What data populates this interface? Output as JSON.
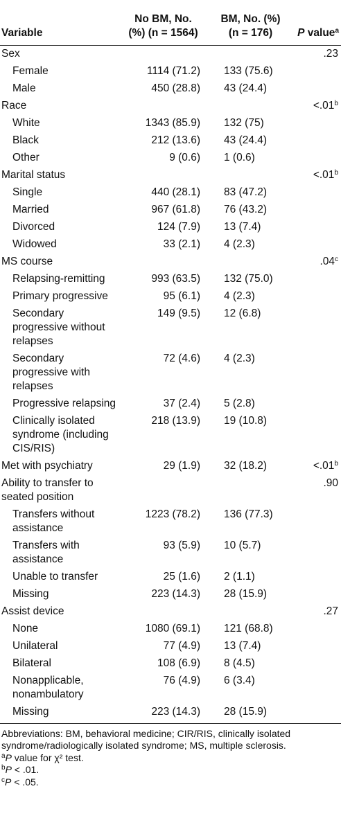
{
  "table": {
    "headers": {
      "variable": "Variable",
      "no_bm_line1": "No BM, No.",
      "no_bm_line2": "(%) (n = 1564)",
      "bm_line1": "BM, No. (%)",
      "bm_line2": "(n = 176)",
      "p_value": "value",
      "p_letter": "P",
      "p_sup": "a"
    },
    "rows": [
      {
        "label": "Sex",
        "indent": false,
        "no_bm": "",
        "bm": "",
        "p": ".23",
        "p_sup": ""
      },
      {
        "label": "Female",
        "indent": true,
        "no_bm": "1114 (71.2)",
        "bm": "133 (75.6)",
        "p": "",
        "p_sup": ""
      },
      {
        "label": "Male",
        "indent": true,
        "no_bm": "450 (28.8)",
        "bm": "43 (24.4)",
        "p": "",
        "p_sup": ""
      },
      {
        "label": "Race",
        "indent": false,
        "no_bm": "",
        "bm": "",
        "p": "<.01",
        "p_sup": "b"
      },
      {
        "label": "White",
        "indent": true,
        "no_bm": "1343 (85.9)",
        "bm": "132 (75)",
        "p": "",
        "p_sup": ""
      },
      {
        "label": "Black",
        "indent": true,
        "no_bm": "212 (13.6)",
        "bm": "43 (24.4)",
        "p": "",
        "p_sup": ""
      },
      {
        "label": "Other",
        "indent": true,
        "no_bm": "9 (0.6)",
        "bm": "1 (0.6)",
        "p": "",
        "p_sup": ""
      },
      {
        "label": "Marital status",
        "indent": false,
        "no_bm": "",
        "bm": "",
        "p": "<.01",
        "p_sup": "b"
      },
      {
        "label": "Single",
        "indent": true,
        "no_bm": "440 (28.1)",
        "bm": "83 (47.2)",
        "p": "",
        "p_sup": ""
      },
      {
        "label": "Married",
        "indent": true,
        "no_bm": "967 (61.8)",
        "bm": "76 (43.2)",
        "p": "",
        "p_sup": ""
      },
      {
        "label": "Divorced",
        "indent": true,
        "no_bm": "124 (7.9)",
        "bm": "13 (7.4)",
        "p": "",
        "p_sup": ""
      },
      {
        "label": "Widowed",
        "indent": true,
        "no_bm": "33 (2.1)",
        "bm": "4 (2.3)",
        "p": "",
        "p_sup": ""
      },
      {
        "label": "MS course",
        "indent": false,
        "no_bm": "",
        "bm": "",
        "p": ".04",
        "p_sup": "c"
      },
      {
        "label": "Relapsing-remitting",
        "indent": true,
        "no_bm": "993 (63.5)",
        "bm": "132 (75.0)",
        "p": "",
        "p_sup": ""
      },
      {
        "label": "Primary progressive",
        "indent": true,
        "no_bm": "95 (6.1)",
        "bm": "4 (2.3)",
        "p": "",
        "p_sup": ""
      },
      {
        "label": "Secondary progressive without relapses",
        "indent": true,
        "no_bm": "149 (9.5)",
        "bm": "12 (6.8)",
        "p": "",
        "p_sup": ""
      },
      {
        "label": "Secondary progressive with relapses",
        "indent": true,
        "no_bm": "72 (4.6)",
        "bm": "4 (2.3)",
        "p": "",
        "p_sup": ""
      },
      {
        "label": "Progressive relapsing",
        "indent": true,
        "no_bm": "37 (2.4)",
        "bm": "5 (2.8)",
        "p": "",
        "p_sup": ""
      },
      {
        "label": "Clinically isolated syndrome (including CIS/RIS)",
        "indent": true,
        "no_bm": "218 (13.9)",
        "bm": "19 (10.8)",
        "p": "",
        "p_sup": ""
      },
      {
        "label": "Met with psychiatry",
        "indent": false,
        "no_bm": "29 (1.9)",
        "bm": "32 (18.2)",
        "p": "<.01",
        "p_sup": "b"
      },
      {
        "label": "Ability to transfer to seated position",
        "indent": false,
        "no_bm": "",
        "bm": "",
        "p": ".90",
        "p_sup": ""
      },
      {
        "label": "Transfers without assistance",
        "indent": true,
        "no_bm": "1223 (78.2)",
        "bm": "136 (77.3)",
        "p": "",
        "p_sup": ""
      },
      {
        "label": "Transfers with assistance",
        "indent": true,
        "no_bm": "93 (5.9)",
        "bm": "10 (5.7)",
        "p": "",
        "p_sup": ""
      },
      {
        "label": "Unable to transfer",
        "indent": true,
        "no_bm": "25 (1.6)",
        "bm": "2 (1.1)",
        "p": "",
        "p_sup": ""
      },
      {
        "label": "Missing",
        "indent": true,
        "no_bm": "223 (14.3)",
        "bm": "28 (15.9)",
        "p": "",
        "p_sup": ""
      },
      {
        "label": "Assist device",
        "indent": false,
        "no_bm": "",
        "bm": "",
        "p": ".27",
        "p_sup": ""
      },
      {
        "label": "None",
        "indent": true,
        "no_bm": "1080 (69.1)",
        "bm": "121 (68.8)",
        "p": "",
        "p_sup": ""
      },
      {
        "label": "Unilateral",
        "indent": true,
        "no_bm": "77 (4.9)",
        "bm": "13 (7.4)",
        "p": "",
        "p_sup": ""
      },
      {
        "label": "Bilateral",
        "indent": true,
        "no_bm": "108 (6.9)",
        "bm": "8 (4.5)",
        "p": "",
        "p_sup": ""
      },
      {
        "label": "Nonapplicable, nonambulatory",
        "indent": true,
        "no_bm": "76 (4.9)",
        "bm": "6 (3.4)",
        "p": "",
        "p_sup": ""
      },
      {
        "label": "Missing",
        "indent": true,
        "no_bm": "223 (14.3)",
        "bm": "28 (15.9)",
        "p": "",
        "p_sup": ""
      }
    ]
  },
  "footnotes": {
    "abbreviations": "Abbreviations: BM, behavioral medicine; CIR/RIS, clinically isolated syndrome/radiologically isolated syndrome; MS, multiple sclerosis.",
    "a_mark": "a",
    "a_p": "P",
    "a_text": " value for χ² test.",
    "b_mark": "b",
    "b_p": "P",
    "b_text": " < .01.",
    "c_mark": "c",
    "c_p": "P",
    "c_text": " < .05."
  }
}
